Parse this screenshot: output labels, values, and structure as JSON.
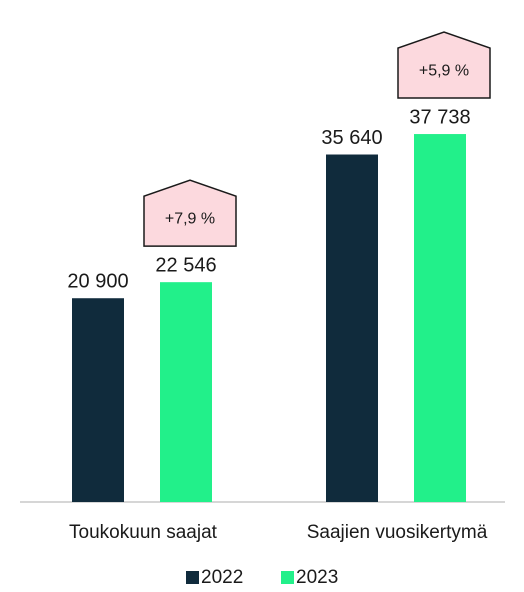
{
  "chart_data": {
    "type": "bar",
    "categories": [
      "Toukokuun saajat",
      "Saajien vuosikertymä"
    ],
    "series": [
      {
        "name": "2022",
        "color": "#102b3c",
        "values": [
          20900,
          35640
        ],
        "value_labels": [
          "20 900",
          "35 640"
        ]
      },
      {
        "name": "2023",
        "color": "#22f08a",
        "values": [
          22546,
          37738
        ],
        "value_labels": [
          "22 546",
          "37 738"
        ]
      }
    ],
    "annotations": [
      "+7,9 %",
      "+5,9 %"
    ],
    "ylim": [
      0,
      40000
    ]
  }
}
